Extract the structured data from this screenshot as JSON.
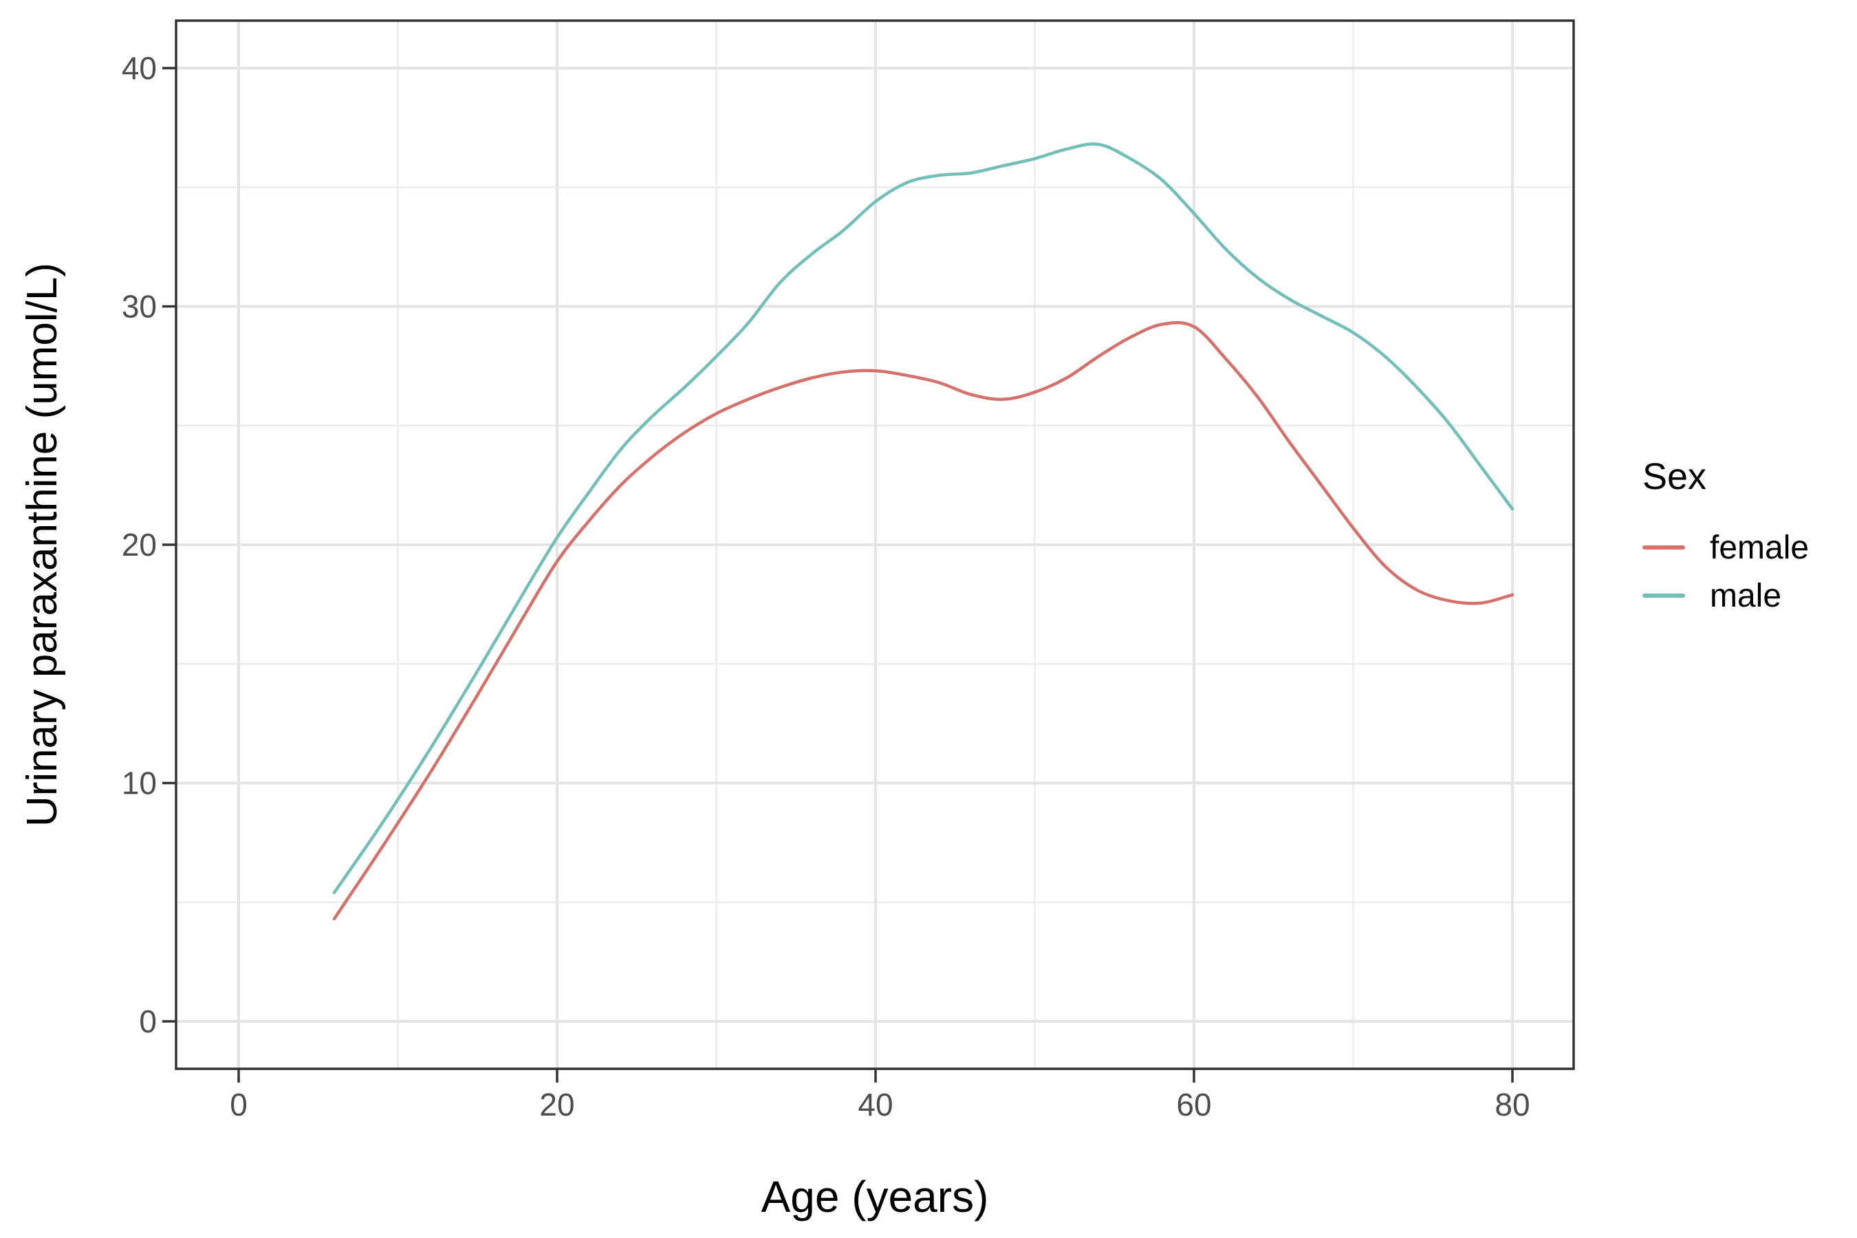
{
  "chart_data": {
    "type": "line",
    "title": "",
    "xlabel": "Age (years)",
    "ylabel": "Urinary paraxanthine (umol/L)",
    "x_axis": {
      "ticks": [
        0,
        20,
        40,
        60,
        80
      ],
      "minor_ticks": [
        10,
        30,
        50,
        70
      ],
      "limits": [
        0,
        80
      ]
    },
    "y_axis": {
      "ticks": [
        0,
        10,
        20,
        30,
        40
      ],
      "minor_ticks": [
        5,
        15,
        25,
        35
      ],
      "limits": [
        0,
        40
      ]
    },
    "grid": "major-and-minor",
    "legend": {
      "title": "Sex",
      "position": "right"
    },
    "series": [
      {
        "name": "female",
        "color": "#D5706A",
        "smoothed": true,
        "points": [
          [
            6,
            4.3
          ],
          [
            9,
            7.3
          ],
          [
            12,
            10.4
          ],
          [
            15,
            13.7
          ],
          [
            18,
            17.1
          ],
          [
            20,
            19.3
          ],
          [
            22,
            21.0
          ],
          [
            24,
            22.5
          ],
          [
            26,
            23.7
          ],
          [
            28,
            24.7
          ],
          [
            30,
            25.5
          ],
          [
            32,
            26.1
          ],
          [
            34,
            26.6
          ],
          [
            36,
            27.0
          ],
          [
            38,
            27.25
          ],
          [
            40,
            27.3
          ],
          [
            42,
            27.1
          ],
          [
            44,
            26.8
          ],
          [
            46,
            26.3
          ],
          [
            48,
            26.1
          ],
          [
            50,
            26.4
          ],
          [
            52,
            27.0
          ],
          [
            54,
            27.9
          ],
          [
            56,
            28.7
          ],
          [
            58,
            29.25
          ],
          [
            60,
            29.15
          ],
          [
            62,
            27.8
          ],
          [
            64,
            26.2
          ],
          [
            66,
            24.3
          ],
          [
            68,
            22.5
          ],
          [
            70,
            20.7
          ],
          [
            72,
            19.1
          ],
          [
            74,
            18.1
          ],
          [
            76,
            17.65
          ],
          [
            78,
            17.55
          ],
          [
            80,
            17.9
          ]
        ]
      },
      {
        "name": "male",
        "color": "#72BEB9",
        "smoothed": true,
        "points": [
          [
            6,
            5.4
          ],
          [
            9,
            8.3
          ],
          [
            12,
            11.4
          ],
          [
            15,
            14.7
          ],
          [
            18,
            18.1
          ],
          [
            20,
            20.3
          ],
          [
            22,
            22.2
          ],
          [
            24,
            24.0
          ],
          [
            26,
            25.4
          ],
          [
            28,
            26.6
          ],
          [
            30,
            27.9
          ],
          [
            32,
            29.3
          ],
          [
            34,
            31.0
          ],
          [
            36,
            32.2
          ],
          [
            38,
            33.2
          ],
          [
            40,
            34.4
          ],
          [
            42,
            35.2
          ],
          [
            44,
            35.5
          ],
          [
            46,
            35.6
          ],
          [
            48,
            35.9
          ],
          [
            50,
            36.2
          ],
          [
            52,
            36.6
          ],
          [
            54,
            36.8
          ],
          [
            56,
            36.2
          ],
          [
            58,
            35.3
          ],
          [
            60,
            33.9
          ],
          [
            62,
            32.4
          ],
          [
            64,
            31.2
          ],
          [
            66,
            30.3
          ],
          [
            68,
            29.6
          ],
          [
            70,
            28.9
          ],
          [
            72,
            27.9
          ],
          [
            74,
            26.6
          ],
          [
            76,
            25.1
          ],
          [
            78,
            23.3
          ],
          [
            80,
            21.5
          ]
        ]
      }
    ]
  },
  "style": {
    "background": "#FFFFFF",
    "panel_background": "#FFFFFF",
    "panel_border": "#333333",
    "grid_major": "#E4E4E4",
    "grid_minor": "#ECECEC",
    "tick_color": "#333333",
    "tick_label_color": "#4D4D4D",
    "axis_title_color": "#000000"
  }
}
